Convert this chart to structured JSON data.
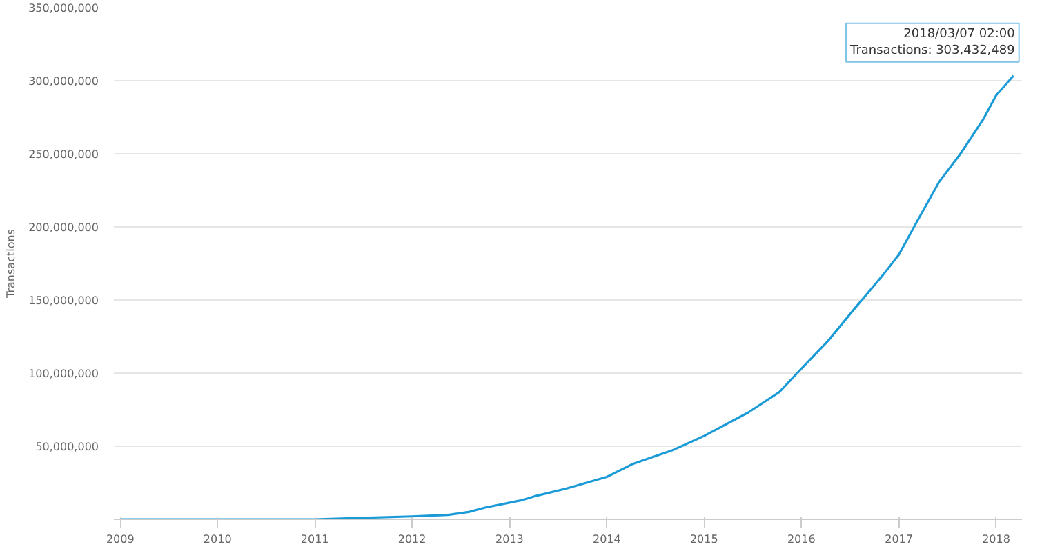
{
  "chart_data": {
    "type": "line",
    "ylabel": "Transactions",
    "x": [
      "2009-01-01",
      "2010-01-01",
      "2011-01-01",
      "2011-07-01",
      "2012-01-01",
      "2012-05-15",
      "2012-08-01",
      "2012-10-01",
      "2013-02-15",
      "2013-04-10",
      "2013-08-01",
      "2014-01-01",
      "2014-04-10",
      "2014-09-01",
      "2015-01-01",
      "2015-06-15",
      "2015-10-10",
      "2016-01-01",
      "2016-04-10",
      "2016-07-20",
      "2016-11-01",
      "2017-01-01",
      "2017-03-05",
      "2017-06-01",
      "2017-08-20",
      "2017-11-15",
      "2018-01-01",
      "2018-03-07T02:00"
    ],
    "series": [
      {
        "color": "#1a9bd7",
        "values": [
          0,
          0,
          0,
          1000000,
          2000000,
          3000000,
          5000000,
          8000000,
          13000000,
          16000000,
          21000000,
          29000000,
          38000000,
          47000000,
          57000000,
          73000000,
          87000000,
          103000000,
          122000000,
          144400000,
          166800000,
          181000000,
          202000000,
          230800000,
          250000000,
          274000000,
          290000000,
          303432489
        ]
      }
    ],
    "xlim": [
      "2008-12-08",
      "2018-04-08"
    ],
    "xticks": [
      "2009",
      "2010",
      "2011",
      "2012",
      "2013",
      "2014",
      "2015",
      "2016",
      "2017",
      "2018"
    ],
    "ylim": [
      0,
      350000000
    ],
    "yticks": [
      {
        "value": 50000000,
        "label": "50,000,000"
      },
      {
        "value": 100000000,
        "label": "100,000,000"
      },
      {
        "value": 150000000,
        "label": "150,000,000"
      },
      {
        "value": 200000000,
        "label": "200,000,000"
      },
      {
        "value": 250000000,
        "label": "250,000,000"
      },
      {
        "value": 300000000,
        "label": "300,000,000"
      },
      {
        "value": 350000000,
        "label": "350,000,000"
      }
    ],
    "grid": "y",
    "marker": "none",
    "line_style": "solid",
    "annotations": [
      {
        "text": "2018/03/07 02:00\nTransactions: 303,432,489",
        "x": "2018-03-07T02:00",
        "y": 303432489
      }
    ]
  }
}
